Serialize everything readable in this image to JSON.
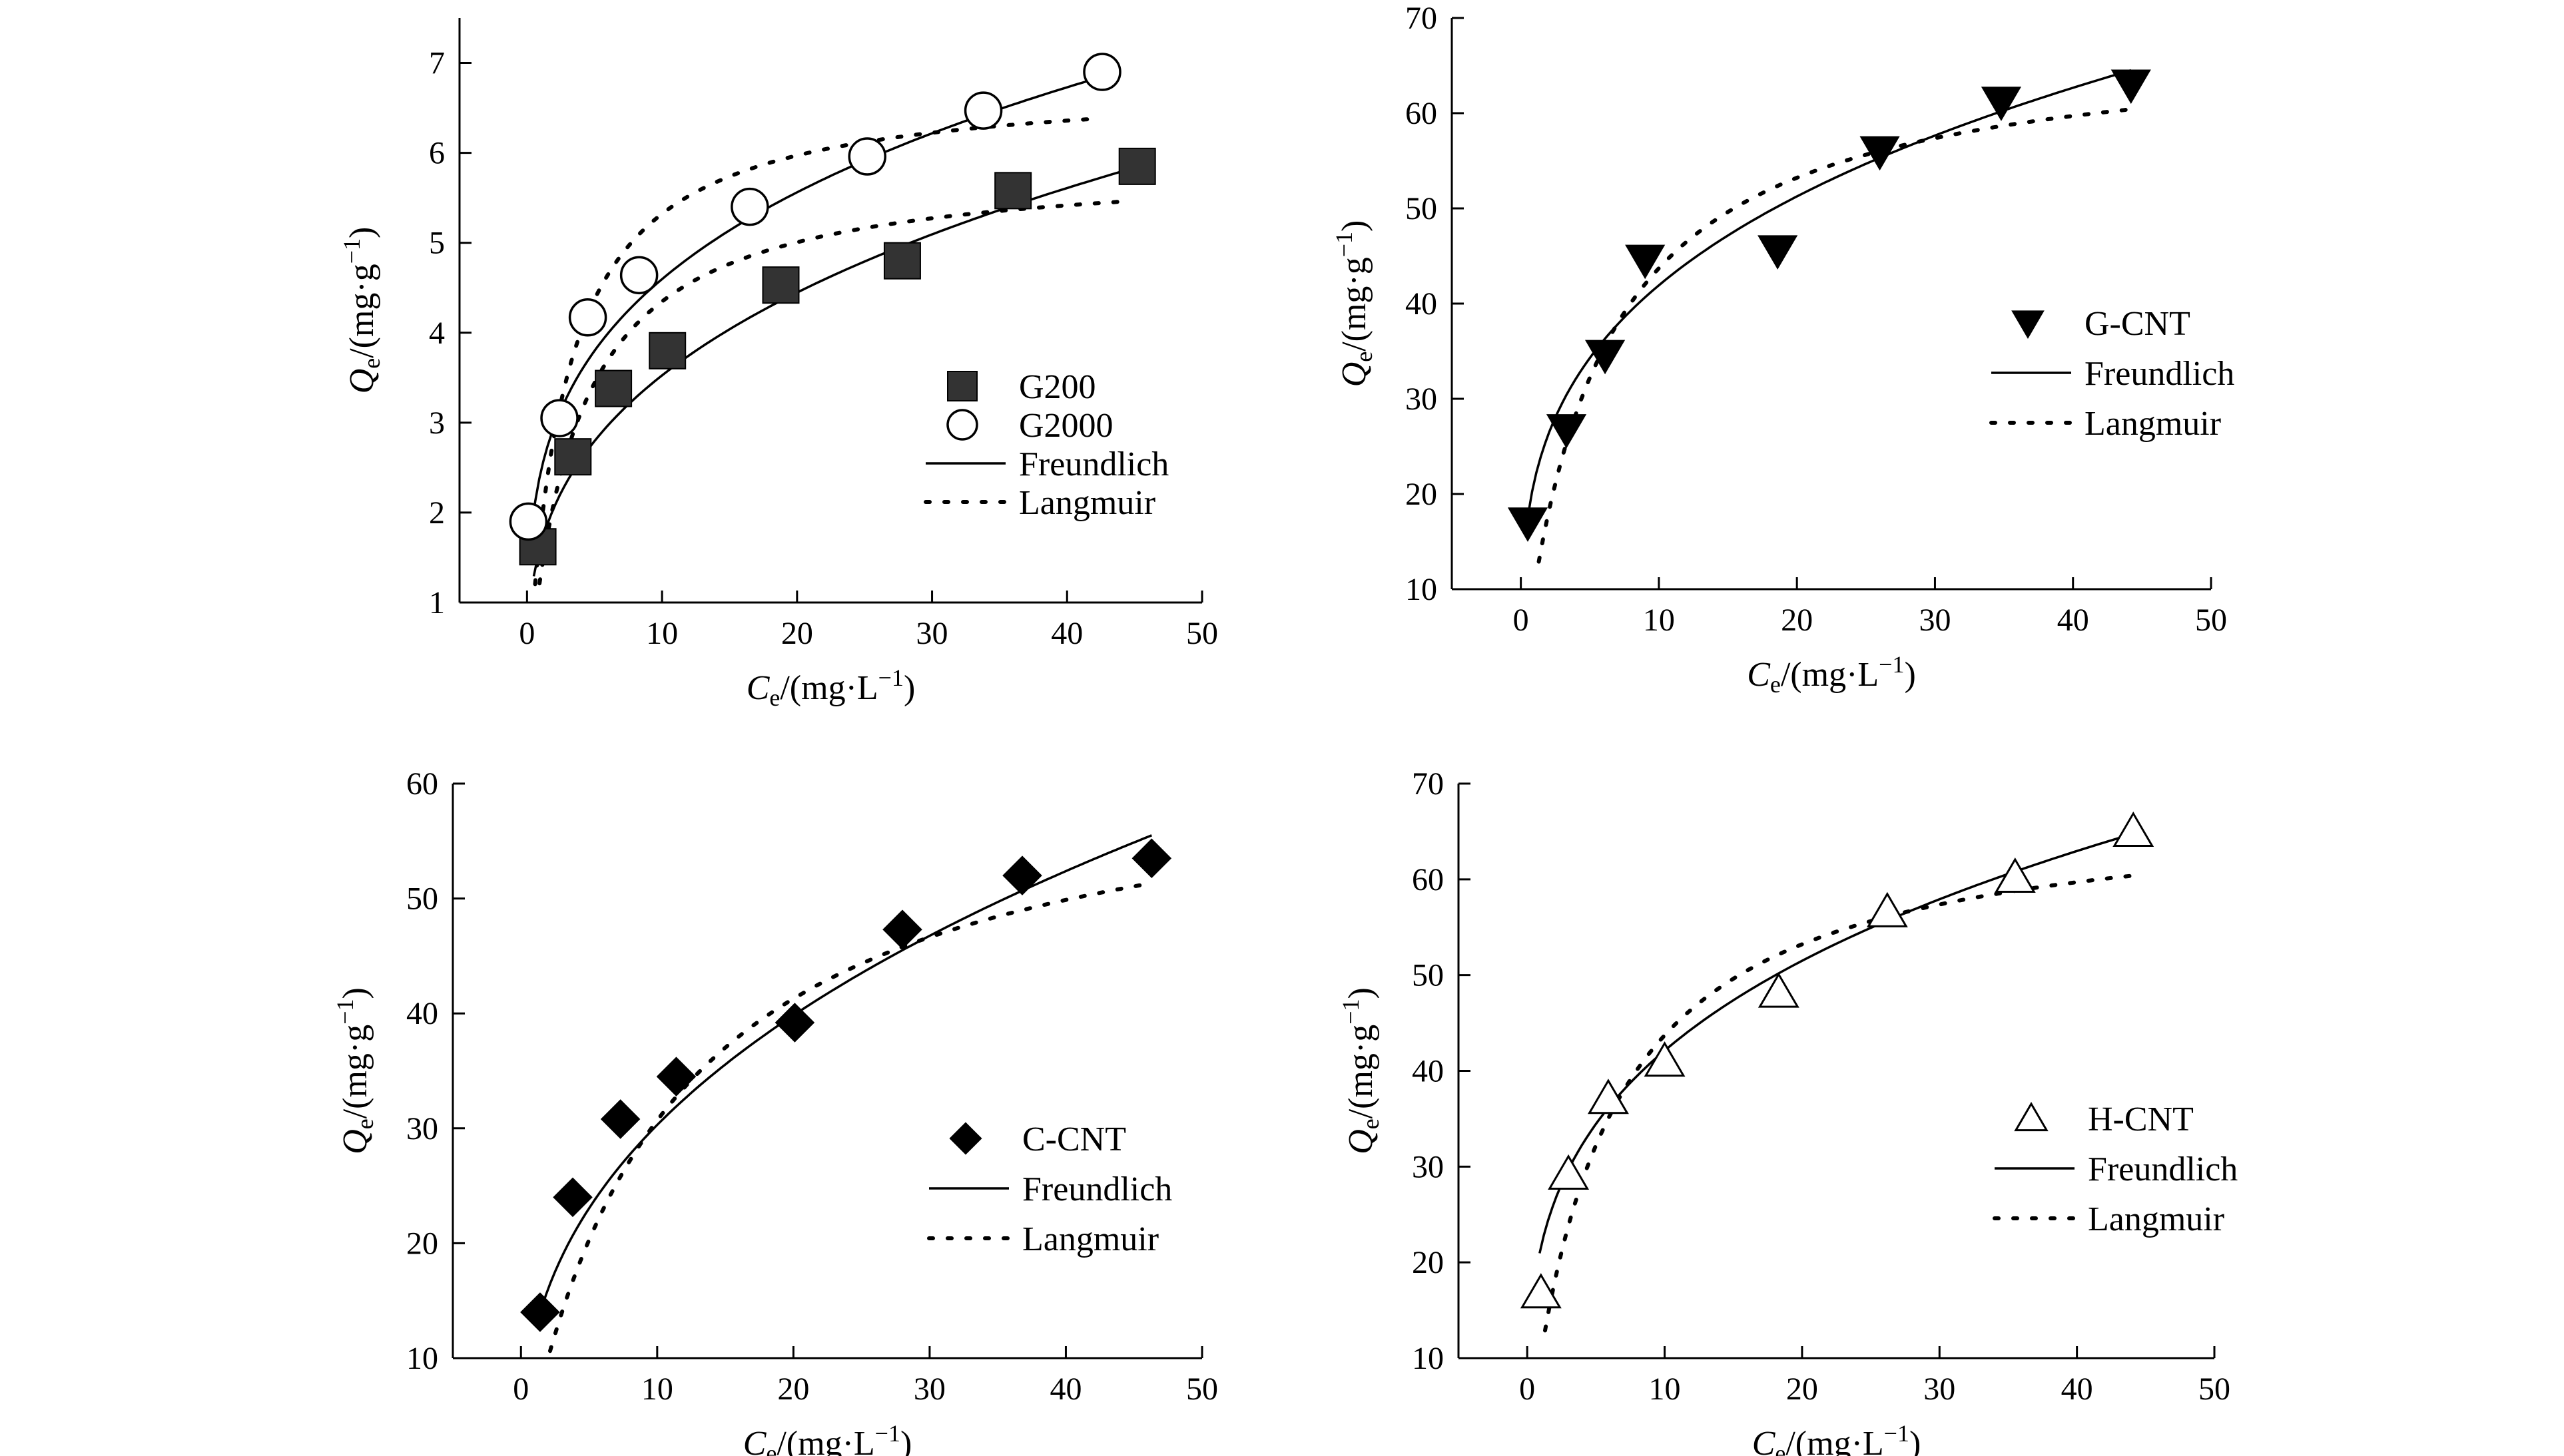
{
  "chart_data": [
    {
      "type": "scatter",
      "panel": "top-left",
      "xlabel": {
        "symbol": "C",
        "sub": "e",
        "unit": "/(mg·L",
        "exp": "−1",
        "close": ")"
      },
      "ylabel": {
        "symbol": "Q",
        "sub": "e",
        "unit": "/(mg·g",
        "exp": "−1",
        "close": ")"
      },
      "xlim": [
        -5,
        50
      ],
      "ylim": [
        1,
        7.5
      ],
      "xticks": [
        0,
        10,
        20,
        30,
        40,
        50
      ],
      "yticks": [
        1,
        2,
        3,
        4,
        5,
        6,
        7
      ],
      "legend_position": "lower-right",
      "series": [
        {
          "name": "G200",
          "marker": "filled-square",
          "x": [
            0.8,
            3.4,
            6.4,
            10.4,
            18.8,
            27.8,
            36.0,
            45.2
          ],
          "y": [
            1.62,
            2.62,
            3.38,
            3.8,
            4.53,
            4.8,
            5.58,
            5.85
          ]
        },
        {
          "name": "G2000",
          "marker": "open-circle",
          "x": [
            0.1,
            2.4,
            4.5,
            8.3,
            16.5,
            25.2,
            33.8,
            42.6
          ],
          "y": [
            1.9,
            3.05,
            4.17,
            4.64,
            5.4,
            5.96,
            6.47,
            6.9
          ]
        }
      ],
      "fits": [
        {
          "name": "Freundlich",
          "style": "solid",
          "for": "G200",
          "model": "freundlich",
          "K": 1.63,
          "n": 0.335,
          "xrange": [
            0.5,
            45.2
          ]
        },
        {
          "name": "Freundlich",
          "style": "solid",
          "for": "G2000",
          "model": "freundlich",
          "K": 2.44,
          "n": 0.275,
          "xrange": [
            0.3,
            42.6
          ]
        },
        {
          "name": "Langmuir",
          "style": "dotted",
          "for": "G200",
          "model": "langmuir",
          "Qm": 5.9,
          "KL": 0.28,
          "xrange": [
            0.3,
            44.0
          ]
        },
        {
          "name": "Langmuir",
          "style": "dotted",
          "for": "G2000",
          "model": "langmuir",
          "Qm": 6.8,
          "KL": 0.36,
          "xrange": [
            0.3,
            42.0
          ]
        }
      ],
      "legend": [
        {
          "label": "G200",
          "kind": "marker",
          "marker": "filled-square"
        },
        {
          "label": "G2000",
          "kind": "marker",
          "marker": "open-circle"
        },
        {
          "label": "Freundlich",
          "kind": "line",
          "style": "solid"
        },
        {
          "label": "Langmuir",
          "kind": "line",
          "style": "dotted"
        }
      ]
    },
    {
      "type": "scatter",
      "panel": "top-right",
      "xlabel": {
        "symbol": "C",
        "sub": "e",
        "unit": "/(mg·L",
        "exp": "−1",
        "close": ")"
      },
      "ylabel": {
        "symbol": "Q",
        "sub": "e",
        "unit": "/(mg·g",
        "exp": "−1",
        "close": ")"
      },
      "xlim": [
        -5,
        50
      ],
      "ylim": [
        10,
        70
      ],
      "xticks": [
        0,
        10,
        20,
        30,
        40,
        50
      ],
      "yticks": [
        10,
        20,
        30,
        40,
        50,
        60,
        70
      ],
      "legend_position": "upper-right",
      "series": [
        {
          "name": "G-CNT",
          "marker": "filled-triangle-down",
          "x": [
            0.5,
            3.3,
            6.1,
            9.0,
            18.6,
            26.0,
            34.8,
            44.2
          ],
          "y": [
            17.0,
            26.8,
            34.6,
            44.6,
            45.6,
            56.0,
            61.2,
            63.0
          ]
        }
      ],
      "fits": [
        {
          "name": "Freundlich",
          "style": "solid",
          "for": "G-CNT",
          "model": "freundlich",
          "K": 21.5,
          "n": 0.29,
          "xrange": [
            0.5,
            44.2
          ]
        },
        {
          "name": "Langmuir",
          "style": "dotted",
          "for": "G-CNT",
          "model": "langmuir",
          "Qm": 68.0,
          "KL": 0.18,
          "xrange": [
            1.3,
            44.0
          ]
        }
      ],
      "legend": [
        {
          "label": "G-CNT",
          "kind": "marker",
          "marker": "filled-triangle-down"
        },
        {
          "label": "Freundlich",
          "kind": "line",
          "style": "solid"
        },
        {
          "label": "Langmuir",
          "kind": "line",
          "style": "dotted"
        }
      ]
    },
    {
      "type": "scatter",
      "panel": "bottom-left",
      "xlabel": {
        "symbol": "C",
        "sub": "e",
        "unit": "/(mg·L",
        "exp": "−1",
        "close": ")"
      },
      "ylabel": {
        "symbol": "Q",
        "sub": "e",
        "unit": "/(mg·g",
        "exp": "−1",
        "close": ")"
      },
      "xlim": [
        -5,
        50
      ],
      "ylim": [
        10,
        60
      ],
      "xticks": [
        0,
        10,
        20,
        30,
        40,
        50
      ],
      "yticks": [
        10,
        20,
        30,
        40,
        50,
        60
      ],
      "legend_position": "lower-right",
      "series": [
        {
          "name": "C-CNT",
          "marker": "filled-diamond",
          "x": [
            1.4,
            3.8,
            7.3,
            11.4,
            20.1,
            28.0,
            36.8,
            46.3
          ],
          "y": [
            14.0,
            24.0,
            30.8,
            34.5,
            39.2,
            47.3,
            52.0,
            53.5
          ]
        }
      ],
      "fits": [
        {
          "name": "Freundlich",
          "style": "solid",
          "for": "C-CNT",
          "model": "freundlich",
          "K": 12.2,
          "n": 0.395,
          "xrange": [
            1.2,
            46.3
          ]
        },
        {
          "name": "Langmuir",
          "style": "dotted",
          "for": "C-CNT",
          "model": "langmuir",
          "Qm": 63.0,
          "KL": 0.095,
          "xrange": [
            1.5,
            46.0
          ]
        }
      ],
      "legend": [
        {
          "label": "C-CNT",
          "kind": "marker",
          "marker": "filled-diamond"
        },
        {
          "label": "Freundlich",
          "kind": "line",
          "style": "solid"
        },
        {
          "label": "Langmuir",
          "kind": "line",
          "style": "dotted"
        }
      ]
    },
    {
      "type": "scatter",
      "panel": "bottom-right",
      "xlabel": {
        "symbol": "C",
        "sub": "e",
        "unit": "/(mg·L",
        "exp": "−1",
        "close": ")"
      },
      "ylabel": {
        "symbol": "Q",
        "sub": "e",
        "unit": "/(mg·g",
        "exp": "−1",
        "close": ")"
      },
      "xlim": [
        -5,
        50
      ],
      "ylim": [
        10,
        70
      ],
      "xticks": [
        0,
        10,
        20,
        30,
        40,
        50
      ],
      "yticks": [
        10,
        20,
        30,
        40,
        50,
        60,
        70
      ],
      "legend_position": "lower-right",
      "series": [
        {
          "name": "H-CNT",
          "marker": "open-triangle-up",
          "x": [
            1.0,
            3.0,
            5.9,
            10.0,
            18.3,
            26.2,
            35.5,
            44.1
          ],
          "y": [
            16.8,
            29.2,
            37.1,
            41.0,
            48.2,
            56.6,
            60.2,
            65.0
          ]
        }
      ],
      "fits": [
        {
          "name": "Freundlich",
          "style": "solid",
          "for": "H-CNT",
          "model": "freundlich",
          "K": 21.6,
          "n": 0.29,
          "xrange": [
            0.9,
            44.1
          ]
        },
        {
          "name": "Langmuir",
          "style": "dotted",
          "for": "H-CNT",
          "model": "langmuir",
          "Qm": 68.0,
          "KL": 0.18,
          "xrange": [
            1.3,
            44.0
          ]
        }
      ],
      "legend": [
        {
          "label": "H-CNT",
          "kind": "marker",
          "marker": "open-triangle-up"
        },
        {
          "label": "Freundlich",
          "kind": "line",
          "style": "solid"
        },
        {
          "label": "Langmuir",
          "kind": "line",
          "style": "dotted"
        }
      ]
    }
  ]
}
